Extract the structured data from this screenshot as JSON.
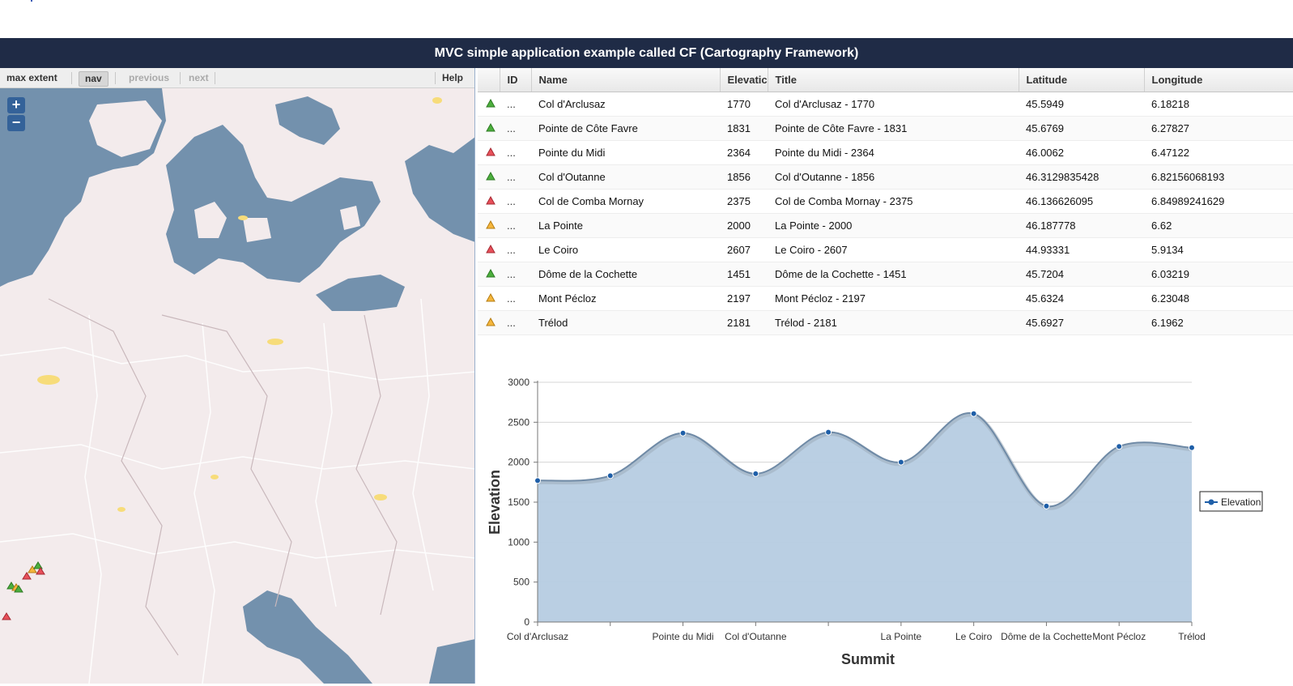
{
  "header": {
    "title": "MVC simple application example called CF (Cartography Framework)"
  },
  "toolbar": {
    "max_extent": "max extent",
    "nav": "nav",
    "previous": "previous",
    "next": "next",
    "help": "Help"
  },
  "map": {
    "zoom_in": "+",
    "zoom_out": "−"
  },
  "grid": {
    "columns": [
      "ID",
      "Name",
      "Elevatic",
      "Title",
      "Latitude",
      "Longitude"
    ],
    "rows": [
      {
        "icon": "green-triangle-icon",
        "id": "...",
        "name": "Col d'Arclusaz",
        "elevation": "1770",
        "title": "Col d'Arclusaz - 1770",
        "lat": "45.5949",
        "lon": "6.18218"
      },
      {
        "icon": "green-triangle-icon",
        "id": "...",
        "name": "Pointe de Côte Favre",
        "elevation": "1831",
        "title": "Pointe de Côte Favre - 1831",
        "lat": "45.6769",
        "lon": "6.27827"
      },
      {
        "icon": "red-triangle-icon",
        "id": "...",
        "name": "Pointe du Midi",
        "elevation": "2364",
        "title": "Pointe du Midi - 2364",
        "lat": "46.0062",
        "lon": "6.47122"
      },
      {
        "icon": "green-triangle-icon",
        "id": "...",
        "name": "Col d'Outanne",
        "elevation": "1856",
        "title": "Col d'Outanne - 1856",
        "lat": "46.3129835428",
        "lon": "6.82156068193"
      },
      {
        "icon": "red-triangle-icon",
        "id": "...",
        "name": "Col de Comba Mornay",
        "elevation": "2375",
        "title": "Col de Comba Mornay - 2375",
        "lat": "46.136626095",
        "lon": "6.84989241629"
      },
      {
        "icon": "orange-triangle-icon",
        "id": "...",
        "name": "La Pointe",
        "elevation": "2000",
        "title": "La Pointe - 2000",
        "lat": "46.187778",
        "lon": "6.62"
      },
      {
        "icon": "red-triangle-icon",
        "id": "...",
        "name": "Le Coiro",
        "elevation": "2607",
        "title": "Le Coiro - 2607",
        "lat": "44.93331",
        "lon": "5.9134"
      },
      {
        "icon": "green-triangle-icon",
        "id": "...",
        "name": "Dôme de la Cochette",
        "elevation": "1451",
        "title": "Dôme de la Cochette - 1451",
        "lat": "45.7204",
        "lon": "6.03219"
      },
      {
        "icon": "orange-triangle-icon",
        "id": "...",
        "name": "Mont Pécloz",
        "elevation": "2197",
        "title": "Mont Pécloz - 2197",
        "lat": "45.6324",
        "lon": "6.23048"
      },
      {
        "icon": "orange-triangle-icon",
        "id": "...",
        "name": "Trélod",
        "elevation": "2181",
        "title": "Trélod - 2181",
        "lat": "45.6927",
        "lon": "6.1962"
      }
    ]
  },
  "colors": {
    "header_bg": "#1f2b46",
    "sea": "#7391ad",
    "land": "#f3ebec",
    "triangle_green": "#4caf3d",
    "triangle_red": "#e8505a",
    "triangle_orange": "#f5b63c",
    "area_fill": "#b6cce2",
    "series": "#1f5fa8"
  },
  "chart_data": {
    "type": "area",
    "categories": [
      "Col d'Arclusaz",
      "Pointe de Côte Favre",
      "Pointe du Midi",
      "Col d'Outanne",
      "Col de Comba Mornay",
      "La Pointe",
      "Le Coiro",
      "Dôme de la Cochette",
      "Mont Pécloz",
      "Trélod"
    ],
    "tick_labels": [
      "Col d'Arclusaz",
      "",
      "Pointe du Midi",
      "Col d'Outanne",
      "",
      "La Pointe",
      "Le Coiro",
      "Dôme de la Cochette",
      "Mont Pécloz",
      "Trélod"
    ],
    "series": [
      {
        "name": "Elevation",
        "values": [
          1770,
          1831,
          2364,
          1856,
          2375,
          2000,
          2607,
          1451,
          2197,
          2181
        ]
      }
    ],
    "xlabel": "Summit",
    "ylabel": "Elevation",
    "ylim": [
      0,
      3000
    ],
    "yticks": [
      "0",
      "500",
      "1000",
      "1500",
      "2000",
      "2500",
      "3000"
    ],
    "grid": true,
    "legend": "right",
    "smooth": true
  }
}
